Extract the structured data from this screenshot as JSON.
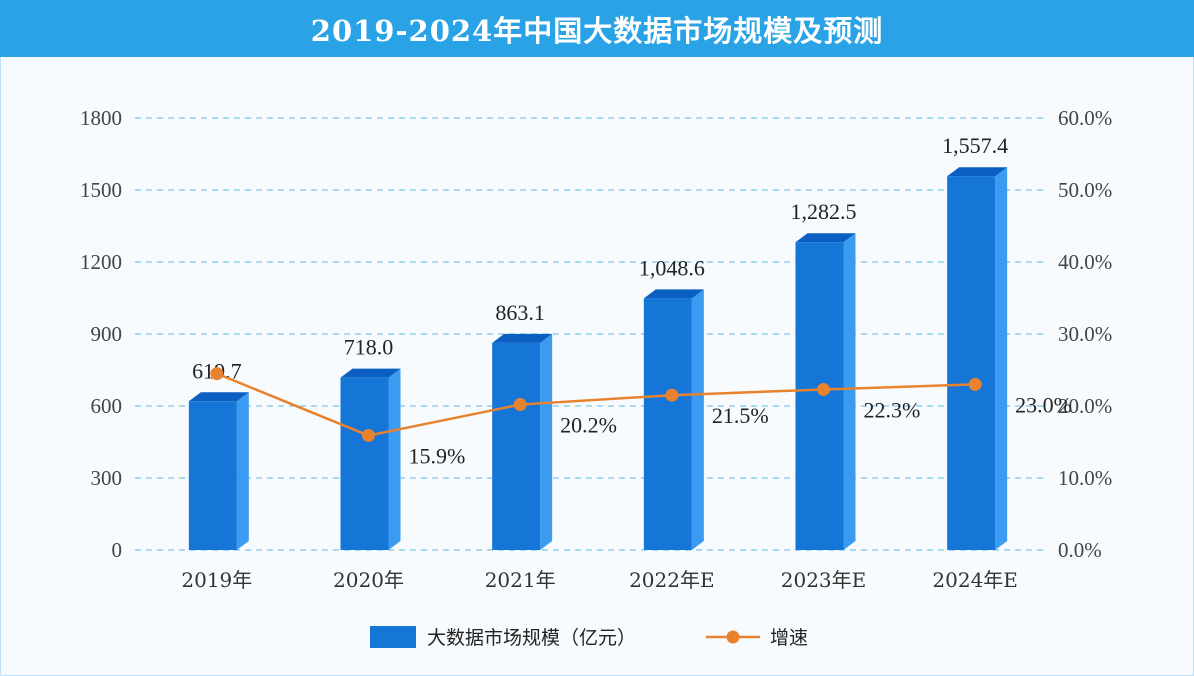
{
  "title": "2019-2024年中国大数据市场规模及预测",
  "colors": {
    "title_bg": "#2aa3e6",
    "bar_front": "#1576d8",
    "bar_side": "#3a9bf0",
    "bar_top": "#0b5fc0",
    "line": "#e8822e",
    "grid": "#7fc3ea"
  },
  "chart_data": {
    "type": "bar",
    "categories": [
      "2019年",
      "2020年",
      "2021年",
      "2022年E",
      "2023年E",
      "2024年E"
    ],
    "series": [
      {
        "name": "大数据市场规模（亿元）",
        "type": "bar",
        "axis": "left",
        "values": [
          619.7,
          718.0,
          863.1,
          1048.6,
          1282.5,
          1557.4
        ],
        "value_labels": [
          "619.7",
          "718.0",
          "863.1",
          "1,048.6",
          "1,282.5",
          "1,557.4"
        ]
      },
      {
        "name": "增速",
        "type": "line",
        "axis": "right",
        "values": [
          24.5,
          15.9,
          20.2,
          21.5,
          22.3,
          23.0
        ],
        "value_labels": [
          "",
          "15.9%",
          "20.2%",
          "21.5%",
          "22.3%",
          "23.0%"
        ]
      }
    ],
    "y_left": {
      "ticks": [
        "0",
        "300",
        "600",
        "900",
        "1200",
        "1500",
        "1800"
      ],
      "ylim": [
        0,
        1800
      ]
    },
    "y_right": {
      "ticks": [
        "0.0%",
        "10.0%",
        "20.0%",
        "30.0%",
        "40.0%",
        "50.0%",
        "60.0%"
      ],
      "ylim": [
        0,
        60
      ]
    },
    "grid": true,
    "legend_position": "bottom"
  }
}
